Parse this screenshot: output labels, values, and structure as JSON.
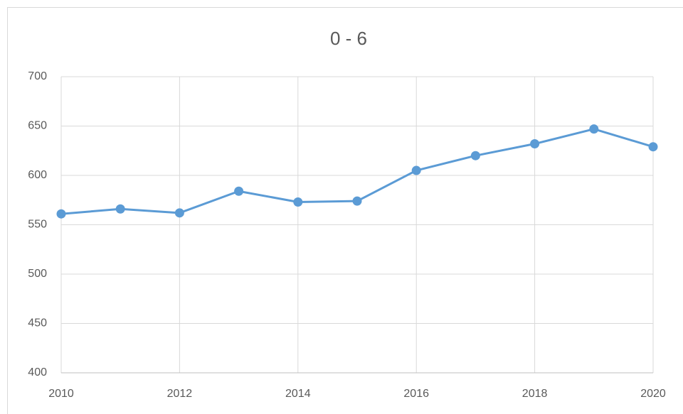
{
  "chart_data": {
    "type": "line",
    "title": "0 - 6",
    "x": [
      2010,
      2011,
      2012,
      2013,
      2014,
      2015,
      2016,
      2017,
      2018,
      2019,
      2020
    ],
    "series": [
      {
        "name": "0 - 6",
        "color": "#5b9bd5",
        "values": [
          561,
          566,
          562,
          584,
          573,
          574,
          605,
          620,
          632,
          647,
          629
        ]
      }
    ],
    "xlim": [
      2010,
      2020
    ],
    "xticks": [
      2010,
      2012,
      2014,
      2016,
      2018,
      2020
    ],
    "ylim": [
      400,
      700
    ],
    "yticks": [
      400,
      450,
      500,
      550,
      600,
      650,
      700
    ],
    "grid": true
  }
}
